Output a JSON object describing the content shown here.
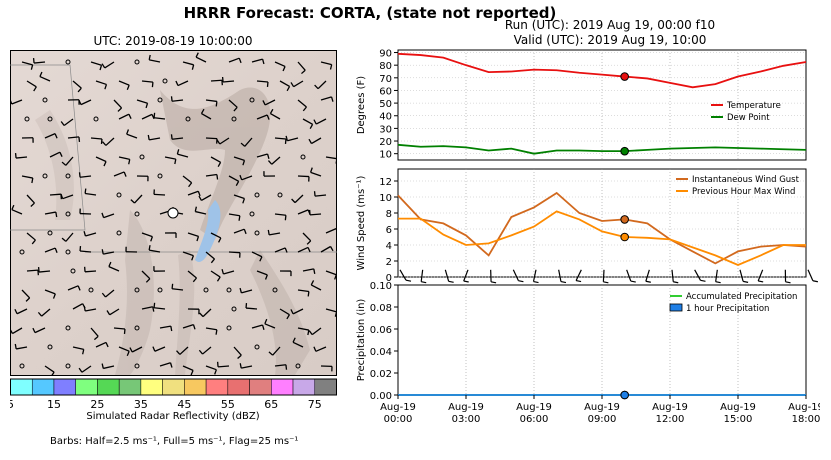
{
  "header": {
    "title": "HRRR Forecast: CORTA, (state not reported)",
    "run_line": "Run (UTC): 2019 Aug 19, 00:00 f10",
    "valid_line": "Valid (UTC): 2019 Aug 19, 10:00"
  },
  "map": {
    "title": "UTC: 2019-08-19 10:00:00",
    "colorbar_label": "Simulated Radar Reflectivity (dBZ)",
    "colorbar_ticks": [
      "5",
      "15",
      "25",
      "35",
      "45",
      "55",
      "65",
      "75"
    ],
    "colorbar_colors": [
      "#7fffff",
      "#55c8ff",
      "#7f7fff",
      "#7fff7f",
      "#55d855",
      "#77c777",
      "#ffff7f",
      "#f0e07f",
      "#f7c860",
      "#ff7f7f",
      "#e87070",
      "#e07f7f",
      "#ff7fff",
      "#c8a8e8",
      "#808080"
    ]
  },
  "footer": {
    "barbs_note": "Barbs: Half=2.5 ms⁻¹, Full=5 ms⁻¹, Flag=25 ms⁻¹"
  },
  "chart_data": [
    {
      "type": "line",
      "ylabel": "Degrees (F)",
      "ylim": [
        5,
        92
      ],
      "yticks": [
        10,
        20,
        30,
        40,
        50,
        60,
        70,
        80,
        90
      ],
      "x": [
        0,
        1,
        2,
        3,
        4,
        5,
        6,
        7,
        8,
        9,
        10,
        11,
        12,
        13,
        14,
        15,
        16,
        17,
        18
      ],
      "series": [
        {
          "name": "Temperature",
          "color": "#e81010",
          "values": [
            89,
            88,
            86,
            80,
            74.5,
            75,
            76.5,
            76,
            74,
            72.5,
            71,
            69.5,
            66,
            62.5,
            65,
            71,
            75,
            79.5,
            82.5
          ]
        },
        {
          "name": "Dew Point",
          "color": "#008000",
          "values": [
            17,
            15.5,
            16,
            15,
            12.5,
            14,
            10,
            12.5,
            12.5,
            12,
            12,
            13,
            14,
            14.5,
            15,
            14.5,
            14,
            13.5,
            13
          ]
        }
      ],
      "marker_hour": 10,
      "legend": "right"
    },
    {
      "type": "line",
      "ylabel": "Wind Speed (ms⁻¹)",
      "ylim": [
        0,
        13.5
      ],
      "yticks": [
        0,
        2,
        4,
        6,
        8,
        10,
        12
      ],
      "x": [
        0,
        1,
        2,
        3,
        4,
        5,
        6,
        7,
        8,
        9,
        10,
        11,
        12,
        13,
        14,
        15,
        16,
        17,
        18
      ],
      "series": [
        {
          "name": "Instantaneous Wind Gust",
          "color": "#d2691e",
          "values": [
            10.2,
            7.2,
            6.7,
            5.2,
            2.7,
            7.5,
            8.7,
            10.5,
            8,
            7,
            7.2,
            6.7,
            4.7,
            3.2,
            1.7,
            3.2,
            3.8,
            4,
            3.8
          ]
        },
        {
          "name": "Previous Hour Max Wind",
          "color": "#ff8c00",
          "values": [
            7.3,
            7.3,
            5.3,
            4,
            4.2,
            5.2,
            6.3,
            8.2,
            7.2,
            5.7,
            5,
            4.9,
            4.7,
            3.7,
            2.7,
            1.5,
            2.7,
            4,
            4
          ]
        }
      ],
      "marker_hour": 10,
      "legend": "top-right"
    },
    {
      "type": "line",
      "ylabel": "Precipitation (in)",
      "ylim": [
        0,
        0.1
      ],
      "yticks": [
        0.0,
        0.02,
        0.04,
        0.06,
        0.08,
        0.1
      ],
      "x": [
        0,
        1,
        2,
        3,
        4,
        5,
        6,
        7,
        8,
        9,
        10,
        11,
        12,
        13,
        14,
        15,
        16,
        17,
        18
      ],
      "series": [
        {
          "name": "Accumulated Precipitation",
          "color": "#32cd32",
          "values": [
            0,
            0,
            0,
            0,
            0,
            0,
            0,
            0,
            0,
            0,
            0,
            0,
            0,
            0,
            0,
            0,
            0,
            0,
            0
          ]
        },
        {
          "name": "1 hour Precipitation",
          "color": "#1f7fe6",
          "values": [
            0,
            0,
            0,
            0,
            0,
            0,
            0,
            0,
            0,
            0,
            0,
            0,
            0,
            0,
            0,
            0,
            0,
            0,
            0
          ]
        }
      ],
      "marker_hour": 10,
      "legend": "top-right",
      "xtick_labels": [
        [
          "Aug-19",
          "00:00"
        ],
        [
          "Aug-19",
          "03:00"
        ],
        [
          "Aug-19",
          "06:00"
        ],
        [
          "Aug-19",
          "09:00"
        ],
        [
          "Aug-19",
          "12:00"
        ],
        [
          "Aug-19",
          "15:00"
        ],
        [
          "Aug-19",
          "18:00"
        ]
      ]
    }
  ]
}
